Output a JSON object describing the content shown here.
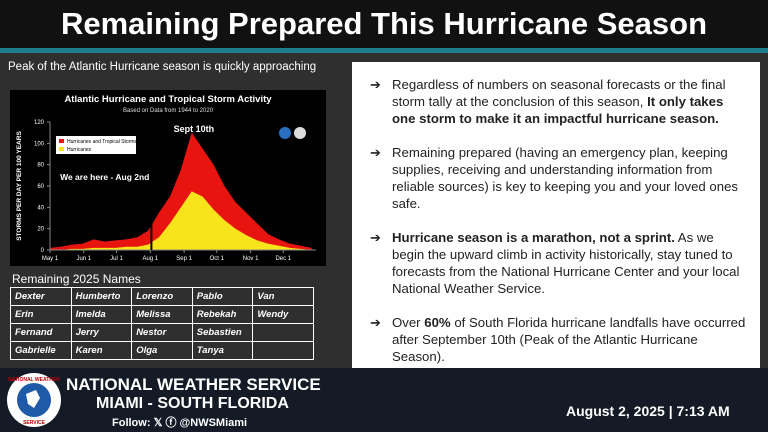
{
  "header": {
    "title": "Remaining Prepared This Hurricane Season",
    "subtitle": "Peak of the Atlantic Hurricane season is quickly approaching"
  },
  "chart_data": {
    "type": "area",
    "title": "Atlantic Hurricane and Tropical Storm Activity",
    "subtitle": "Based on Data from 1944 to 2020",
    "y_label": "STORMS PER DAY PER 100 YEARS",
    "x": [
      0,
      10,
      20,
      30,
      40,
      50,
      60,
      70,
      80,
      90,
      100,
      110,
      120,
      130,
      140,
      150,
      160,
      170,
      180,
      190,
      200,
      210,
      220,
      230,
      240
    ],
    "series": [
      {
        "name": "Hurricanes and Tropical Storms",
        "color": "#e8140f",
        "values": [
          2,
          3,
          5,
          6,
          10,
          8,
          9,
          10,
          12,
          18,
          35,
          50,
          75,
          110,
          95,
          80,
          60,
          45,
          35,
          25,
          15,
          10,
          6,
          4,
          2
        ]
      },
      {
        "name": "Hurricanes",
        "color": "#f7e41a",
        "values": [
          0,
          0,
          1,
          1,
          2,
          2,
          2,
          3,
          3,
          5,
          12,
          25,
          40,
          55,
          50,
          38,
          28,
          20,
          14,
          9,
          6,
          4,
          2,
          1,
          0
        ]
      }
    ],
    "xlim": [
      0,
      244
    ],
    "xticks": [
      {
        "value": 0,
        "label": "May 1"
      },
      {
        "value": 31,
        "label": "Jun 1"
      },
      {
        "value": 61,
        "label": "Jul 1"
      },
      {
        "value": 92,
        "label": "Aug 1"
      },
      {
        "value": 123,
        "label": "Sep 1"
      },
      {
        "value": 153,
        "label": "Oct 1"
      },
      {
        "value": 184,
        "label": "Nov 1"
      },
      {
        "value": 214,
        "label": "Dec 1"
      }
    ],
    "ylim": [
      0,
      120
    ],
    "yticks": [
      0,
      20,
      40,
      60,
      80,
      100,
      120
    ],
    "annotations": [
      {
        "text": "Sept 10th",
        "x": 132
      },
      {
        "text": "We are here - Aug 2nd",
        "x": 93
      }
    ]
  },
  "names": {
    "title": "Remaining 2025 Names",
    "rows": [
      [
        "Dexter",
        "Humberto",
        "Lorenzo",
        "Pablo",
        "Van"
      ],
      [
        "Erin",
        "Imelda",
        "Melissa",
        "Rebekah",
        "Wendy"
      ],
      [
        "Fernand",
        "Jerry",
        "Nestor",
        "Sebastien",
        null
      ],
      [
        "Gabrielle",
        "Karen",
        "Olga",
        "Tanya",
        null
      ]
    ]
  },
  "bullets": [
    [
      "Regardless of numbers on seasonal forecasts or the final storm tally at the conclusion of this season, ",
      "It only takes one storm to make it an impactful hurricane season."
    ],
    [
      "Remaining prepared (having an emergency plan, keeping supplies, receiving and understanding information from reliable sources) is key to keeping you and your loved ones safe."
    ],
    [
      "Hurricane season is a marathon, not a sprint.",
      " As we begin the upward climb in activity historically, stay tuned to forecasts from the National Hurricane Center and your local National Weather Service."
    ],
    [
      "Over ",
      "60%",
      " of South Florida hurricane landfalls have occurred after September 10th (Peak of the Atlantic Hurricane Season)."
    ]
  ],
  "footer": {
    "org": "NATIONAL WEATHER SERVICE",
    "office": "MIAMI - SOUTH FLORIDA",
    "follow": "Follow:",
    "handle": "@NWSMiami",
    "date": "August 2, 2025 | 7:13 AM",
    "logo_top": "NATIONAL WEATHER",
    "logo_bottom": "SERVICE"
  }
}
